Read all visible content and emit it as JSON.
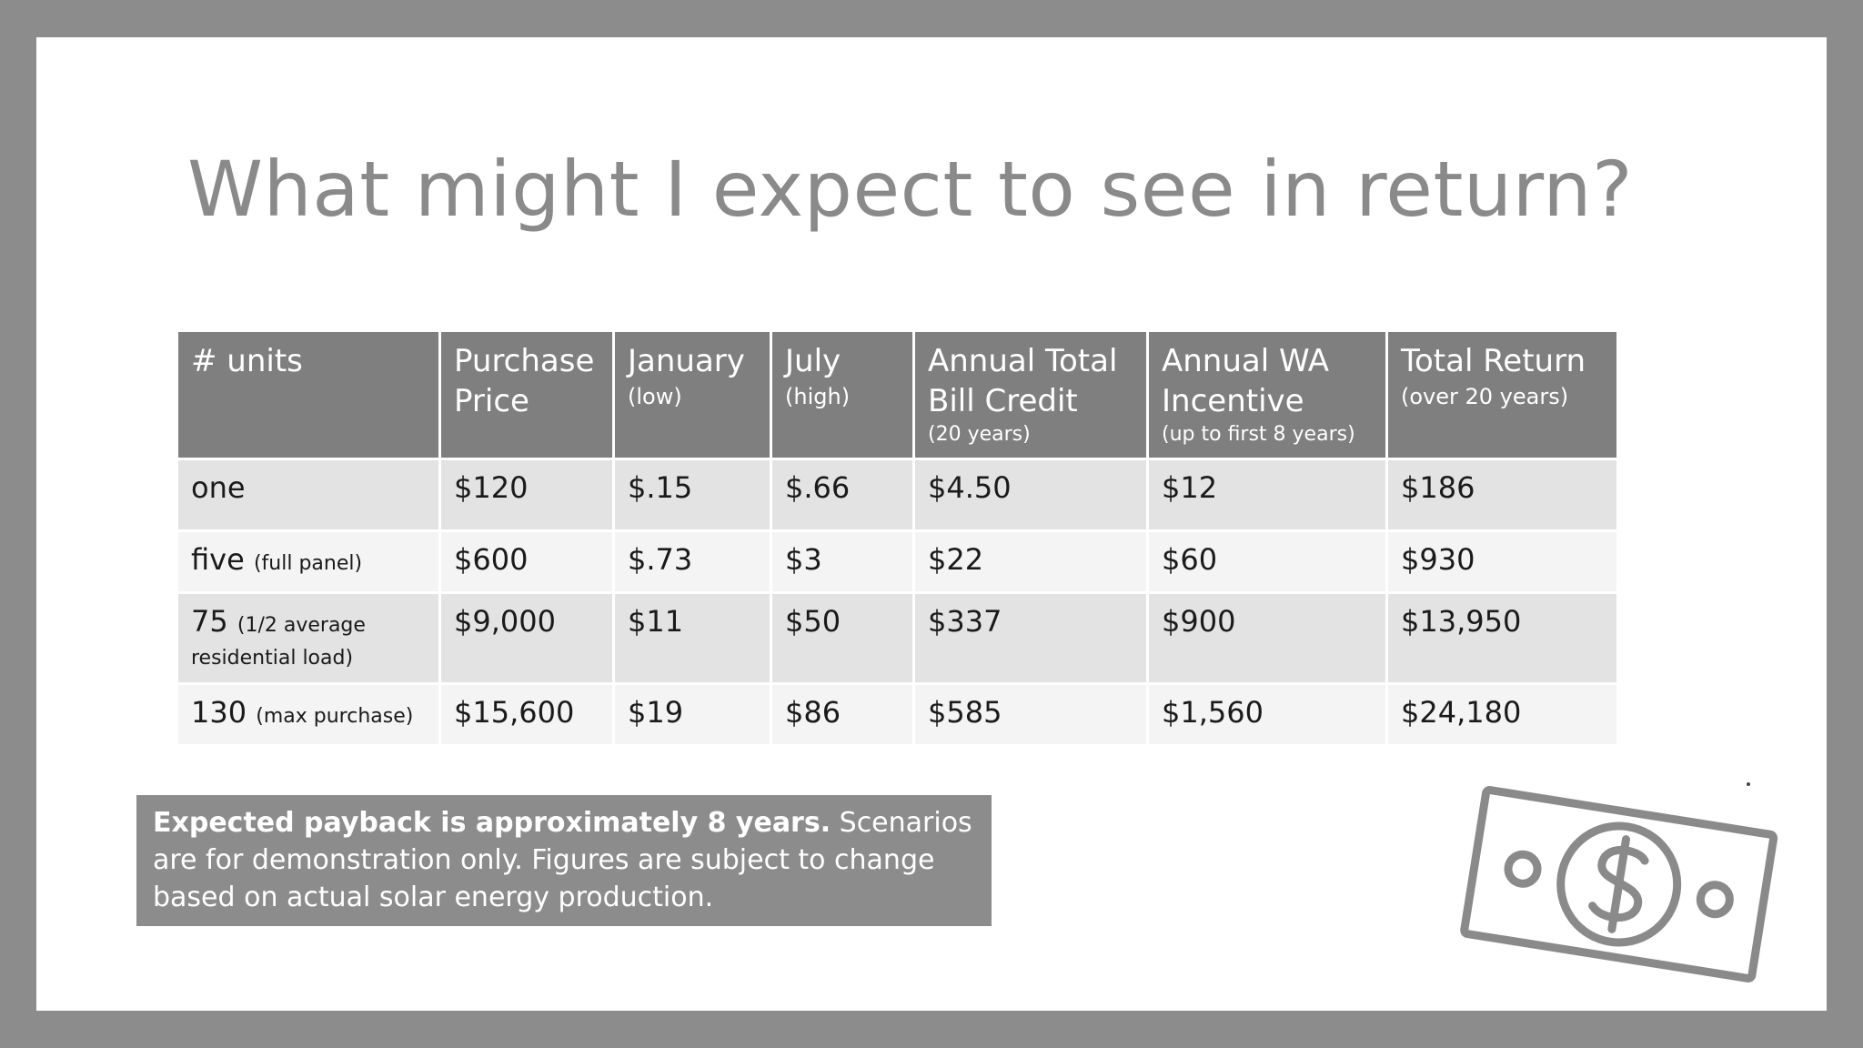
{
  "title": "What might I expect to see in return?",
  "table": {
    "headers": [
      {
        "main": "# units",
        "sub": ""
      },
      {
        "main": "Purchase Price",
        "sub": ""
      },
      {
        "main": "January",
        "sub": "(low)"
      },
      {
        "main": "July",
        "sub": "(high)"
      },
      {
        "main": "Annual Total Bill Credit",
        "sub": "(20 years)"
      },
      {
        "main": "Annual WA Incentive",
        "sub": "(up to first 8 years)"
      },
      {
        "main": "Total Return",
        "sub": "(over 20 years)"
      }
    ],
    "rows": [
      {
        "units": "one",
        "units_note": "",
        "price": "$120",
        "jan": "$.15",
        "jul": "$.66",
        "credit": "$4.50",
        "incentive": "$12",
        "total": "$186"
      },
      {
        "units": "five",
        "units_note": "(full panel)",
        "price": "$600",
        "jan": "$.73",
        "jul": "$3",
        "credit": "$22",
        "incentive": "$60",
        "total": "$930"
      },
      {
        "units": "75",
        "units_note": "(1/2 average",
        "units_note2": "residential load)",
        "price": "$9,000",
        "jan": "$11",
        "jul": "$50",
        "credit": "$337",
        "incentive": "$900",
        "total": "$13,950"
      },
      {
        "units": "130",
        "units_note": "(max purchase)",
        "price": "$15,600",
        "jan": "$19",
        "jul": "$86",
        "credit": "$585",
        "incentive": "$1,560",
        "total": "$24,180"
      }
    ]
  },
  "payback": {
    "bold": "Expected payback is approximately 8 years.",
    "rest": " Scenarios are for demonstration only.  Figures are subject to change based on actual solar energy production."
  },
  "icon": "money-bill-dollar-icon"
}
